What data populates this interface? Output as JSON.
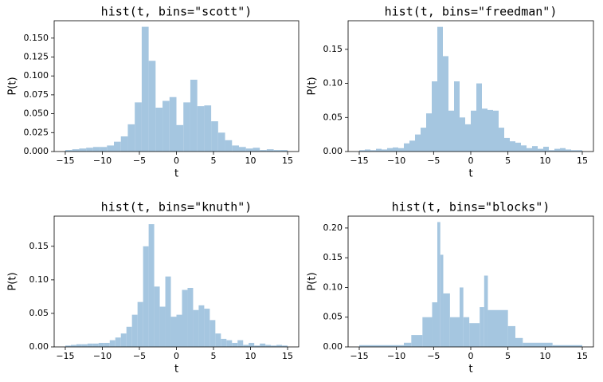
{
  "chart_data": [
    {
      "type": "histogram",
      "title": "hist(t, bins=\"scott\")",
      "x_label": "t",
      "y_label": "P(t)",
      "color": "#a5c6e0",
      "bins": [
        -15,
        -14.0625,
        -13.125,
        -12.1875,
        -11.25,
        -10.3125,
        -9.375,
        -8.4375,
        -7.5,
        -6.5625,
        -5.625,
        -4.6875,
        -3.75,
        -2.8125,
        -1.875,
        -0.9375,
        0,
        0.9375,
        1.875,
        2.8125,
        3.75,
        4.6875,
        5.625,
        6.5625,
        7.5,
        8.4375,
        9.375,
        10.3125,
        11.25,
        12.1875,
        13.125,
        14.0625,
        15
      ],
      "values": [
        0.002,
        0.003,
        0.004,
        0.005,
        0.006,
        0.006,
        0.008,
        0.013,
        0.02,
        0.036,
        0.065,
        0.165,
        0.12,
        0.058,
        0.067,
        0.072,
        0.035,
        0.065,
        0.095,
        0.06,
        0.061,
        0.04,
        0.025,
        0.015,
        0.008,
        0.006,
        0.004,
        0.005,
        0.002,
        0.003,
        0.002,
        0.002
      ],
      "xlim": [
        -16.5,
        16.5
      ],
      "ylim": [
        0,
        0.173
      ],
      "xticks": [
        {
          "value": -15,
          "label": "−15"
        },
        {
          "value": -10,
          "label": "−10"
        },
        {
          "value": -5,
          "label": "−5"
        },
        0,
        5,
        10,
        15
      ],
      "yticks": [
        {
          "value": 0,
          "label": "0.000"
        },
        {
          "value": 0.025,
          "label": "0.025"
        },
        {
          "value": 0.05,
          "label": "0.050"
        },
        {
          "value": 0.075,
          "label": "0.075"
        },
        {
          "value": 0.1,
          "label": "0.100"
        },
        {
          "value": 0.125,
          "label": "0.125"
        },
        {
          "value": 0.15,
          "label": "0.150"
        }
      ]
    },
    {
      "type": "histogram",
      "title": "hist(t, bins=\"freedman\")",
      "x_label": "t",
      "y_label": "P(t)",
      "color": "#a5c6e0",
      "bins": [
        -15,
        -14.25,
        -13.5,
        -12.75,
        -12,
        -11.25,
        -10.5,
        -9.75,
        -9,
        -8.25,
        -7.5,
        -6.75,
        -6,
        -5.25,
        -4.5,
        -3.75,
        -3,
        -2.25,
        -1.5,
        -0.75,
        0,
        0.75,
        1.5,
        2.25,
        3,
        3.75,
        4.5,
        5.25,
        6,
        6.75,
        7.5,
        8.25,
        9,
        9.75,
        10.5,
        11.25,
        12,
        12.75,
        13.5,
        14.25,
        15
      ],
      "values": [
        0.002,
        0.003,
        0.002,
        0.004,
        0.003,
        0.005,
        0.006,
        0.005,
        0.012,
        0.016,
        0.025,
        0.035,
        0.056,
        0.103,
        0.183,
        0.14,
        0.06,
        0.103,
        0.05,
        0.04,
        0.06,
        0.1,
        0.063,
        0.061,
        0.06,
        0.035,
        0.02,
        0.015,
        0.013,
        0.009,
        0.005,
        0.008,
        0.004,
        0.007,
        0.002,
        0.004,
        0.005,
        0.003,
        0.002,
        0.002
      ],
      "xlim": [
        -16.5,
        16.5
      ],
      "ylim": [
        0,
        0.192
      ],
      "xticks": [
        {
          "value": -15,
          "label": "−15"
        },
        {
          "value": -10,
          "label": "−10"
        },
        {
          "value": -5,
          "label": "−5"
        },
        0,
        5,
        10,
        15
      ],
      "yticks": [
        {
          "value": 0,
          "label": "0.00"
        },
        {
          "value": 0.05,
          "label": "0.05"
        },
        {
          "value": 0.1,
          "label": "0.10"
        },
        0.15
      ]
    },
    {
      "type": "histogram",
      "title": "hist(t, bins=\"knuth\")",
      "x_label": "t",
      "y_label": "P(t)",
      "color": "#a5c6e0",
      "bins": [
        -15,
        -14.25,
        -13.5,
        -12.75,
        -12,
        -11.25,
        -10.5,
        -9.75,
        -9,
        -8.25,
        -7.5,
        -6.75,
        -6,
        -5.25,
        -4.5,
        -3.75,
        -3,
        -2.25,
        -1.5,
        -0.75,
        0,
        0.75,
        1.5,
        2.25,
        3,
        3.75,
        4.5,
        5.25,
        6,
        6.75,
        7.5,
        8.25,
        9,
        9.75,
        10.5,
        11.25,
        12,
        12.75,
        13.5,
        14.25,
        15
      ],
      "values": [
        0.002,
        0.003,
        0.004,
        0.004,
        0.005,
        0.005,
        0.006,
        0.006,
        0.01,
        0.014,
        0.02,
        0.03,
        0.048,
        0.067,
        0.15,
        0.183,
        0.09,
        0.06,
        0.105,
        0.045,
        0.048,
        0.085,
        0.088,
        0.055,
        0.062,
        0.057,
        0.04,
        0.02,
        0.012,
        0.01,
        0.006,
        0.01,
        0.003,
        0.006,
        0.002,
        0.005,
        0.003,
        0.002,
        0.003,
        0.002
      ],
      "xlim": [
        -16.5,
        16.5
      ],
      "ylim": [
        0,
        0.195
      ],
      "xticks": [
        {
          "value": -15,
          "label": "−15"
        },
        {
          "value": -10,
          "label": "−10"
        },
        {
          "value": -5,
          "label": "−5"
        },
        0,
        5,
        10,
        15
      ],
      "yticks": [
        {
          "value": 0,
          "label": "0.00"
        },
        {
          "value": 0.05,
          "label": "0.05"
        },
        {
          "value": 0.1,
          "label": "0.10"
        },
        0.15
      ]
    },
    {
      "type": "histogram",
      "title": "hist(t, bins=\"blocks\")",
      "x_label": "t",
      "y_label": "P(t)",
      "color": "#a5c6e0",
      "bins": [
        -15,
        -9,
        -8,
        -6.5,
        -5.2,
        -4.5,
        -4.1,
        -3.7,
        -2.8,
        -1.5,
        -1,
        -0.2,
        1.2,
        1.8,
        2.3,
        5,
        6,
        7,
        11,
        15
      ],
      "values": [
        0.003,
        0.007,
        0.02,
        0.05,
        0.075,
        0.21,
        0.155,
        0.09,
        0.05,
        0.1,
        0.05,
        0.04,
        0.067,
        0.12,
        0.062,
        0.035,
        0.015,
        0.007,
        0.003
      ],
      "xlim": [
        -16.5,
        16.5
      ],
      "ylim": [
        0,
        0.22
      ],
      "xticks": [
        {
          "value": -15,
          "label": "−15"
        },
        {
          "value": -10,
          "label": "−10"
        },
        {
          "value": -5,
          "label": "−5"
        },
        0,
        5,
        10,
        15
      ],
      "yticks": [
        {
          "value": 0,
          "label": "0.00"
        },
        {
          "value": 0.05,
          "label": "0.05"
        },
        {
          "value": 0.1,
          "label": "0.10"
        },
        {
          "value": 0.15,
          "label": "0.15"
        },
        {
          "value": 0.2,
          "label": "0.20"
        }
      ]
    }
  ]
}
